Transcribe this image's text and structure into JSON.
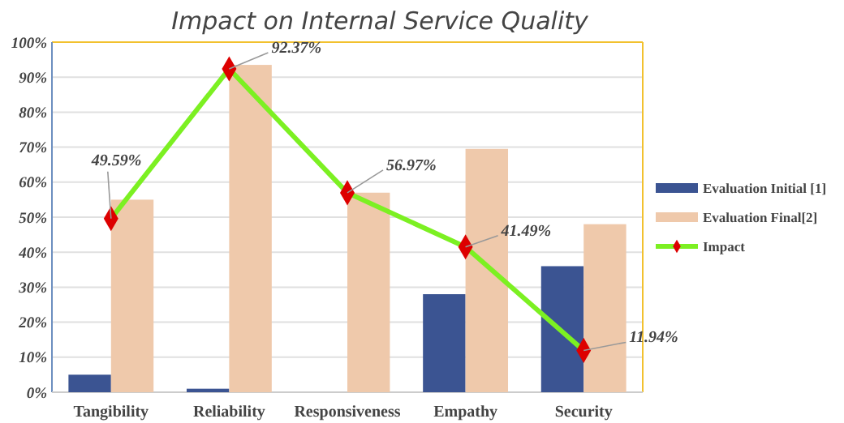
{
  "chart_data": {
    "type": "bar",
    "title": "Impact on Internal Service Quality",
    "categories": [
      "Tangibility",
      "Reliability",
      "Responsiveness",
      "Empathy",
      "Security"
    ],
    "series": [
      {
        "name": "Evaluation Initial [1]",
        "color": "#3b5492",
        "values": [
          5,
          1,
          0,
          28,
          36
        ]
      },
      {
        "name": "Evaluation Final[2]",
        "color": "#efc9ab",
        "values": [
          55,
          93.5,
          57,
          69.5,
          48
        ]
      },
      {
        "name": "Impact",
        "type": "line",
        "color": "#7cf022",
        "values": [
          49.59,
          92.37,
          56.97,
          41.49,
          11.94
        ],
        "value_labels": [
          "49.59%",
          "92.37%",
          "56.97%",
          "41.49%",
          "11.94%"
        ],
        "marker": "diamond"
      }
    ],
    "ylim": [
      0,
      100
    ],
    "yticks": [
      {
        "value": 0,
        "label": "0%"
      },
      {
        "value": 10,
        "label": "10%"
      },
      {
        "value": 20,
        "label": "20%"
      },
      {
        "value": 30,
        "label": "30%"
      },
      {
        "value": 40,
        "label": "40%"
      },
      {
        "value": 50,
        "label": "50%"
      },
      {
        "value": 60,
        "label": "60%"
      },
      {
        "value": 70,
        "label": "70%"
      },
      {
        "value": 80,
        "label": "80%"
      },
      {
        "value": 90,
        "label": "90%"
      },
      {
        "value": 100,
        "label": "100%"
      }
    ],
    "grid": "y",
    "legend": "right"
  }
}
